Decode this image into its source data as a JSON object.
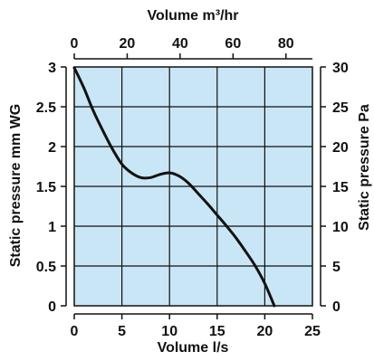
{
  "chart_data": {
    "type": "line",
    "top_axis_title": "Volume m³/hr",
    "bottom_axis_title": "Volume l/s",
    "left_axis_title": "Static pressure mm WG",
    "right_axis_title": "Static pressure Pa",
    "xlim": [
      0,
      25
    ],
    "ylim": [
      0,
      3
    ],
    "x_ticks": [
      "0",
      "5",
      "10",
      "15",
      "20",
      "25"
    ],
    "y_ticks": [
      "0",
      "0.5",
      "1",
      "1.5",
      "2",
      "2.5",
      "3"
    ],
    "top_ticks": [
      "0",
      "20",
      "40",
      "60",
      "80"
    ],
    "top_tick_values": [
      0,
      20,
      40,
      60,
      80
    ],
    "top_lim": [
      0,
      90
    ],
    "right_ticks": [
      "0",
      "5",
      "10",
      "15",
      "20",
      "25",
      "30"
    ],
    "right_tick_values": [
      0,
      5,
      10,
      15,
      20,
      25,
      30
    ],
    "right_lim": [
      0,
      30
    ],
    "grid": true,
    "plot_background": "#c8e6f6",
    "line_color": "#111111",
    "series": [
      {
        "x": [
          0,
          1,
          2,
          3,
          4,
          5,
          6,
          7,
          8,
          9,
          10,
          11,
          12,
          13,
          14,
          15,
          16,
          17,
          18,
          19,
          20,
          21
        ],
        "y": [
          2.99,
          2.74,
          2.45,
          2.2,
          1.97,
          1.78,
          1.67,
          1.61,
          1.61,
          1.65,
          1.67,
          1.63,
          1.54,
          1.41,
          1.28,
          1.14,
          1.0,
          0.85,
          0.68,
          0.5,
          0.28,
          0.0
        ]
      }
    ]
  }
}
